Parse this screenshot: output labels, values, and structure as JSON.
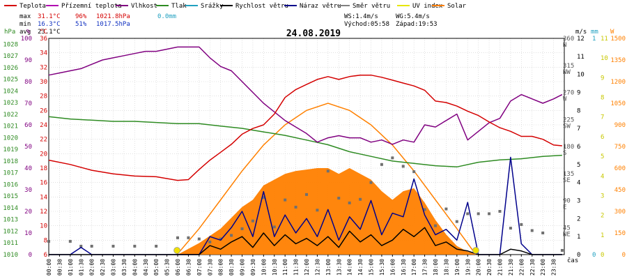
{
  "legend": [
    {
      "label": "Teplota",
      "color": "#d40000"
    },
    {
      "label": "Přízemní teplota",
      "color": "#b000b0"
    },
    {
      "label": "Vlhkost",
      "color": "#800080"
    },
    {
      "label": "Tlak",
      "color": "#2e8b22"
    },
    {
      "label": "Srážky",
      "color": "#20a0c0"
    },
    {
      "label": "Rychlost větru",
      "color": "#000000"
    },
    {
      "label": "Náraz větru",
      "color": "#00008b"
    },
    {
      "label": "Směr větru",
      "color": "#808080"
    },
    {
      "label": "UV index",
      "color": "#e6e600"
    },
    {
      "label": "Solar",
      "color": "#ff8000"
    }
  ],
  "stats": {
    "max_label": "max",
    "max_temp": "31.1°C",
    "max_hum": "96%",
    "max_press": "1021.8hPa",
    "max_rain": "0.0mm",
    "min_label": "min",
    "min_temp": "16.3°C",
    "min_hum": "51%",
    "min_press": "1017.5hPa",
    "avg_label": "avg",
    "avg_temp": "23.1°C"
  },
  "info": {
    "ws": "WS:1.4m/s",
    "wg": "WG:5.4m/s",
    "sunrise": "Východ:05:58",
    "sunset": "Západ:19:53"
  },
  "date": "24.08.2019",
  "time_label": "čas",
  "axis_units": {
    "hpa": "hPa",
    "pct": "%",
    "degc": "°C",
    "ms": "m/s",
    "mm": "mm",
    "w": "W"
  },
  "colors": {
    "temp": "#d40000",
    "hum": "#800080",
    "press": "#2e8b22",
    "rain": "#20a0c0",
    "wind": "#000000",
    "gust": "#00008b",
    "dir": "#707070",
    "uv": "#e6e600",
    "solar": "#ff8000",
    "sunmark": "#f0e000"
  },
  "chart_data": {
    "type": "line",
    "title": "24.08.2019",
    "x_ticks": [
      "00:00",
      "00:30",
      "01:00",
      "01:30",
      "02:00",
      "02:30",
      "03:00",
      "03:30",
      "04:00",
      "04:30",
      "05:00",
      "05:30",
      "06:00",
      "06:30",
      "07:00",
      "07:30",
      "08:00",
      "08:30",
      "09:00",
      "09:30",
      "10:00",
      "10:30",
      "11:00",
      "11:30",
      "12:00",
      "12:30",
      "13:00",
      "13:30",
      "14:00",
      "14:30",
      "15:00",
      "15:30",
      "16:00",
      "16:30",
      "17:00",
      "17:30",
      "18:00",
      "18:30",
      "19:00",
      "19:30",
      "20:00",
      "20:30",
      "21:00",
      "21:30",
      "22:00",
      "22:30",
      "23:00",
      "23:30"
    ],
    "xlim": [
      0,
      24
    ],
    "axes": {
      "pressure": {
        "unit": "hPa",
        "ticks": [
          "1028",
          "1027",
          "1026",
          "1025",
          "1024",
          "1023",
          "1022",
          "1021",
          "1020",
          "1019",
          "1018",
          "1017",
          "1016",
          "1015",
          "1014",
          "1013",
          "1012",
          "1011",
          "1010"
        ],
        "range": [
          1010,
          1028.5
        ]
      },
      "humidity": {
        "unit": "%",
        "ticks": [
          "100",
          "90",
          "80",
          "70",
          "60",
          "50",
          "40",
          "30",
          "20",
          "10",
          "0"
        ],
        "range": [
          0,
          100
        ]
      },
      "temperature": {
        "unit": "°C",
        "ticks": [
          "36",
          "34",
          "32",
          "30",
          "28",
          "26",
          "24",
          "22",
          "20",
          "18",
          "16",
          "14",
          "12",
          "10",
          "8",
          "6"
        ],
        "range": [
          6,
          36
        ]
      },
      "direction": {
        "ticks": [
          "360 N",
          "315 NW",
          "270 W",
          "225 SW",
          "180 S",
          "135 SE",
          "90 E",
          "45 NE"
        ],
        "range": [
          0,
          360
        ]
      },
      "wind": {
        "unit": "m/s",
        "ticks": [
          "12",
          "11",
          "10",
          "9",
          "8",
          "7",
          "6",
          "5",
          "4",
          "3",
          "2",
          "1",
          "0"
        ],
        "range": [
          0,
          12
        ]
      },
      "rain": {
        "unit": "mm",
        "ticks": [
          "1",
          "0"
        ],
        "range": [
          0,
          1
        ]
      },
      "uv": {
        "ticks": [
          "11",
          "10",
          "9",
          "8",
          "7",
          "6",
          "5",
          "4",
          "3",
          "2",
          "1",
          "0"
        ],
        "range": [
          0,
          11
        ]
      },
      "solar": {
        "unit": "W",
        "ticks": [
          "1500",
          "1350",
          "1200",
          "1050",
          "900",
          "750",
          "600",
          "450",
          "300",
          "150",
          "0"
        ],
        "range": [
          0,
          1500
        ]
      }
    },
    "series": [
      {
        "name": "Teplota",
        "axis": "temperature",
        "x": [
          0,
          1,
          2,
          3,
          4,
          5,
          6,
          6.5,
          7,
          7.5,
          8,
          8.5,
          9,
          9.5,
          10,
          10.5,
          11,
          11.5,
          12,
          12.5,
          13,
          13.5,
          14,
          14.5,
          15,
          15.5,
          16,
          16.5,
          17,
          17.5,
          18,
          18.5,
          19,
          19.5,
          20,
          20.5,
          21,
          21.5,
          22,
          22.5,
          23,
          23.5,
          23.9
        ],
        "y": [
          19.1,
          18.5,
          17.7,
          17.2,
          16.9,
          16.8,
          16.3,
          16.4,
          17.8,
          19.1,
          20.2,
          21.3,
          22.7,
          23.5,
          24.0,
          25.5,
          27.8,
          28.9,
          29.6,
          30.3,
          30.7,
          30.3,
          30.7,
          30.9,
          30.9,
          30.6,
          30.2,
          29.8,
          29.4,
          28.8,
          27.3,
          27.1,
          26.6,
          25.9,
          25.3,
          24.4,
          23.6,
          23.1,
          22.4,
          22.4,
          22.0,
          21.2,
          21.1
        ]
      },
      {
        "name": "Vlhkost",
        "axis": "humidity",
        "x": [
          0,
          0.5,
          1,
          1.5,
          2,
          2.5,
          3,
          3.5,
          4,
          4.5,
          5,
          5.5,
          6,
          6.5,
          7,
          7.5,
          8,
          8.5,
          9,
          9.5,
          10,
          10.5,
          11,
          11.5,
          12,
          12.5,
          13,
          13.5,
          14,
          14.5,
          15,
          15.5,
          16,
          16.5,
          17,
          17.5,
          18,
          18.5,
          19,
          19.5,
          20,
          20.5,
          21,
          21.5,
          22,
          22.5,
          23,
          23.5,
          23.9
        ],
        "y": [
          83,
          84,
          85,
          86,
          88,
          90,
          91,
          92,
          93,
          94,
          94,
          95,
          96,
          96,
          96,
          91,
          87,
          85,
          80,
          75,
          70,
          66,
          62,
          59,
          56,
          52,
          54,
          55,
          54,
          54,
          52,
          53,
          51,
          53,
          52,
          60,
          59,
          62,
          65,
          53,
          57,
          61,
          63,
          71,
          74,
          72,
          70,
          72,
          74
        ]
      },
      {
        "name": "Tlak",
        "axis": "pressure",
        "x": [
          0,
          1,
          2,
          3,
          4,
          5,
          6,
          7,
          8,
          9,
          10,
          11,
          12,
          13,
          14,
          15,
          16,
          17,
          18,
          19,
          20,
          21,
          22,
          23,
          23.9
        ],
        "y": [
          1021.8,
          1021.6,
          1021.5,
          1021.4,
          1021.4,
          1021.3,
          1021.2,
          1021.2,
          1021.0,
          1020.8,
          1020.5,
          1020.2,
          1019.8,
          1019.4,
          1018.8,
          1018.4,
          1018.0,
          1017.8,
          1017.6,
          1017.5,
          1017.9,
          1018.1,
          1018.2,
          1018.4,
          1018.5
        ]
      },
      {
        "name": "Rychlost větru",
        "axis": "wind",
        "x": [
          0,
          1,
          1.5,
          2,
          3,
          4,
          5,
          6,
          6.5,
          7,
          7.5,
          8,
          8.5,
          9,
          9.5,
          10,
          10.5,
          11,
          11.5,
          12,
          12.5,
          13,
          13.5,
          14,
          14.5,
          15,
          15.5,
          16,
          16.5,
          17,
          17.5,
          18,
          18.5,
          19,
          19.5,
          20,
          20.5,
          21,
          21.5,
          22,
          22.5,
          23,
          23.9
        ],
        "y": [
          0,
          0,
          0,
          0,
          0,
          0,
          0,
          0,
          0,
          0,
          0.5,
          0.3,
          0.7,
          1.0,
          0.4,
          1.2,
          0.5,
          1.1,
          0.6,
          0.9,
          0.5,
          1.0,
          0.4,
          1.3,
          0.7,
          1.1,
          0.5,
          0.8,
          1.4,
          1.0,
          1.5,
          0.5,
          0.7,
          0.3,
          0.2,
          0,
          0,
          0,
          0.3,
          0.2,
          0,
          0,
          0
        ]
      },
      {
        "name": "Náraz větru",
        "axis": "wind",
        "x": [
          0,
          1,
          1.5,
          2,
          3,
          4,
          5,
          6,
          6.5,
          7,
          7.5,
          8,
          8.5,
          9,
          9.5,
          10,
          10.5,
          11,
          11.5,
          12,
          12.5,
          13,
          13.5,
          14,
          14.5,
          15,
          15.5,
          16,
          16.5,
          17,
          17.5,
          18,
          18.5,
          19,
          19.5,
          20,
          20.5,
          21,
          21.5,
          22,
          22.5,
          23,
          23.9
        ],
        "y": [
          0,
          0,
          0.4,
          0,
          0,
          0,
          0,
          0,
          0,
          0,
          1.0,
          0.8,
          1.5,
          2.4,
          1.0,
          3.5,
          1.0,
          2.2,
          1.2,
          2.0,
          1.0,
          2.5,
          0.8,
          2.1,
          1.4,
          3.0,
          1.1,
          2.3,
          2.1,
          4.2,
          2.2,
          1.1,
          1.4,
          0.8,
          2.9,
          0,
          0,
          0,
          5.4,
          0.6,
          0,
          0,
          0
        ]
      },
      {
        "name": "Směr větru",
        "axis": "direction",
        "x": [
          0,
          1,
          1.5,
          2,
          3,
          4,
          5,
          6,
          6.5,
          7,
          7.5,
          8,
          8.5,
          9,
          9.5,
          10,
          10.5,
          11,
          11.5,
          12,
          12.5,
          13,
          13.5,
          14,
          14.5,
          15,
          15.5,
          16,
          16.5,
          17,
          17.5,
          18,
          18.5,
          19,
          19.5,
          20,
          20.5,
          21,
          21.5,
          22,
          22.5,
          23,
          23.9
        ],
        "y": [
          22,
          22,
          14,
          14,
          14,
          14,
          14,
          28,
          28,
          26,
          21,
          26,
          32,
          43,
          56,
          95,
          46,
          91,
          79,
          100,
          74,
          139,
          94,
          86,
          92,
          120,
          150,
          161,
          147,
          138,
          75,
          48,
          76,
          55,
          68,
          68,
          68,
          72,
          44,
          50,
          40,
          36,
          7
        ]
      },
      {
        "name": "Solar",
        "axis": "solar",
        "x": [
          6,
          7,
          8,
          9,
          9.5,
          10,
          10.5,
          11,
          11.5,
          12,
          12.5,
          13,
          13.5,
          14,
          14.5,
          15,
          15.5,
          16,
          16.5,
          17,
          17.5,
          18,
          18.5,
          19,
          19.5,
          20
        ],
        "y": [
          0,
          80,
          180,
          330,
          380,
          480,
          520,
          560,
          580,
          590,
          600,
          600,
          560,
          600,
          560,
          520,
          440,
          380,
          440,
          460,
          360,
          240,
          140,
          60,
          20,
          0
        ]
      },
      {
        "name": "Solar",
        "axis": "solar",
        "x": [
          5.97,
          7,
          8,
          9,
          10,
          11,
          12,
          13,
          14,
          15,
          16,
          17,
          18,
          19,
          19.88
        ],
        "y": [
          0,
          180,
          380,
          580,
          760,
          900,
          1000,
          1050,
          1000,
          900,
          760,
          580,
          380,
          180,
          0
        ]
      }
    ]
  }
}
